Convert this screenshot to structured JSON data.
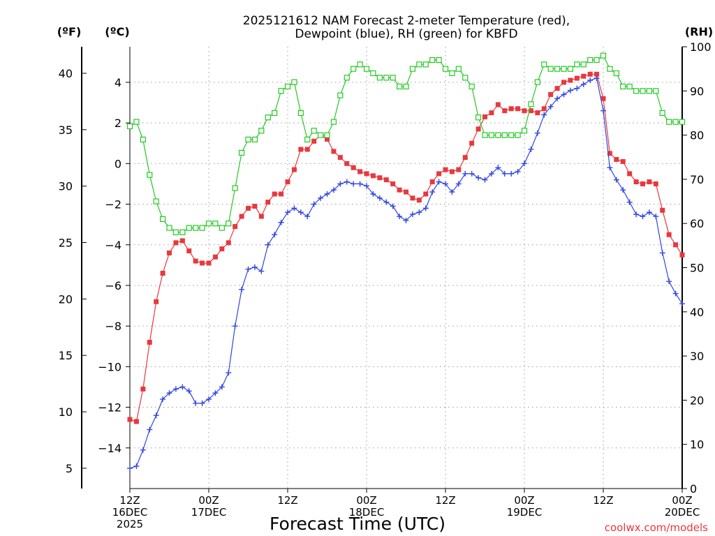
{
  "chart_data": {
    "type": "line",
    "title": [
      "2025121612 NAM Forecast 2-meter Temperature (red),",
      "Dewpoint (blue), RH (green) for KBFD"
    ],
    "xlabel": "Forecast Time (UTC)",
    "units": {
      "fahrenheit": "(ºF)",
      "celsius": "(ºC)",
      "rh": "(RH)"
    },
    "credit": "coolwx.com/models",
    "x_range_hours": [
      0,
      84
    ],
    "x_ticks": [
      {
        "hour": 0,
        "lines": [
          "12Z",
          "16DEC",
          "2025"
        ]
      },
      {
        "hour": 12,
        "lines": [
          "00Z",
          "17DEC"
        ]
      },
      {
        "hour": 24,
        "lines": [
          "12Z"
        ]
      },
      {
        "hour": 36,
        "lines": [
          "00Z",
          "18DEC"
        ]
      },
      {
        "hour": 48,
        "lines": [
          "12Z"
        ]
      },
      {
        "hour": 60,
        "lines": [
          "00Z",
          "19DEC"
        ]
      },
      {
        "hour": 72,
        "lines": [
          "12Z"
        ]
      },
      {
        "hour": 84,
        "lines": [
          "00Z",
          "20DEC"
        ]
      }
    ],
    "y_left_celsius": {
      "range": [
        -16,
        5.75
      ],
      "ticks": [
        4,
        2,
        0,
        -2,
        -4,
        -6,
        -8,
        -10,
        -12,
        -14
      ]
    },
    "y_left_fahrenheit": {
      "range": [
        3.2,
        42.35
      ],
      "ticks": [
        40,
        35,
        30,
        25,
        20,
        15,
        10,
        5
      ]
    },
    "y_right_rh": {
      "range": [
        0,
        100
      ],
      "ticks": [
        100,
        90,
        80,
        70,
        60,
        50,
        40,
        30,
        20,
        10,
        0
      ]
    },
    "hours": [
      0,
      1,
      2,
      3,
      4,
      5,
      6,
      7,
      8,
      9,
      10,
      11,
      12,
      13,
      14,
      15,
      16,
      17,
      18,
      19,
      20,
      21,
      22,
      23,
      24,
      25,
      26,
      27,
      28,
      29,
      30,
      31,
      32,
      33,
      34,
      35,
      36,
      37,
      38,
      39,
      40,
      41,
      42,
      43,
      44,
      45,
      46,
      47,
      48,
      49,
      50,
      51,
      52,
      53,
      54,
      55,
      56,
      57,
      58,
      59,
      60,
      61,
      62,
      63,
      64,
      65,
      66,
      67,
      68,
      69,
      70,
      71,
      72,
      73,
      74,
      75,
      76,
      77,
      78,
      79,
      80,
      81,
      82,
      83,
      84
    ],
    "series": [
      {
        "name": "Temperature",
        "units": "C",
        "color": "#e8383d",
        "marker": "filled-square",
        "values": [
          -12.6,
          -12.7,
          -11.1,
          -8.8,
          -6.8,
          -5.4,
          -4.4,
          -3.9,
          -3.8,
          -4.3,
          -4.8,
          -4.9,
          -4.9,
          -4.6,
          -4.2,
          -3.9,
          -3.1,
          -2.6,
          -2.2,
          -2.1,
          -2.6,
          -1.9,
          -1.5,
          -1.5,
          -0.9,
          -0.3,
          0.7,
          0.7,
          1.1,
          1.4,
          1.2,
          0.6,
          0.3,
          0.0,
          -0.2,
          -0.4,
          -0.5,
          -0.6,
          -0.7,
          -0.8,
          -1.0,
          -1.3,
          -1.4,
          -1.7,
          -1.8,
          -1.5,
          -0.9,
          -0.5,
          -0.3,
          -0.4,
          -0.3,
          0.3,
          1.0,
          1.7,
          2.3,
          2.5,
          2.9,
          2.6,
          2.7,
          2.7,
          2.6,
          2.6,
          2.5,
          2.7,
          3.4,
          3.7,
          4.0,
          4.1,
          4.2,
          4.3,
          4.4,
          4.4,
          3.2,
          0.5,
          0.2,
          0.1,
          -0.5,
          -0.9,
          -1.0,
          -0.9,
          -1.0,
          -2.3,
          -3.5,
          -4.0,
          -4.5
        ]
      },
      {
        "name": "Dewpoint",
        "units": "C",
        "color": "#2f45e0",
        "marker": "plus",
        "values": [
          -15.0,
          -14.9,
          -14.1,
          -13.1,
          -12.4,
          -11.6,
          -11.3,
          -11.1,
          -11.0,
          -11.2,
          -11.8,
          -11.8,
          -11.6,
          -11.3,
          -11.0,
          -10.3,
          -8.0,
          -6.2,
          -5.2,
          -5.1,
          -5.3,
          -4.0,
          -3.5,
          -2.9,
          -2.4,
          -2.2,
          -2.4,
          -2.6,
          -2.0,
          -1.7,
          -1.5,
          -1.3,
          -1.0,
          -0.9,
          -1.0,
          -1.0,
          -1.1,
          -1.5,
          -1.7,
          -1.9,
          -2.1,
          -2.6,
          -2.8,
          -2.5,
          -2.4,
          -2.2,
          -1.4,
          -0.9,
          -1.0,
          -1.4,
          -1.0,
          -0.5,
          -0.5,
          -0.7,
          -0.8,
          -0.5,
          -0.2,
          -0.5,
          -0.5,
          -0.4,
          0.0,
          0.7,
          1.5,
          2.4,
          2.8,
          3.2,
          3.4,
          3.6,
          3.7,
          3.9,
          4.1,
          4.2,
          2.6,
          -0.2,
          -0.8,
          -1.3,
          -1.9,
          -2.5,
          -2.6,
          -2.4,
          -2.6,
          -4.4,
          -5.8,
          -6.4,
          -6.9
        ]
      },
      {
        "name": "RH",
        "units": "%",
        "color": "#22c922",
        "marker": "open-square",
        "values": [
          82,
          83,
          79,
          71,
          65,
          61,
          59,
          58,
          58,
          59,
          59,
          59,
          60,
          60,
          59,
          60,
          68,
          76,
          79,
          79,
          81,
          84,
          85,
          90,
          91,
          92,
          85,
          79,
          81,
          80,
          80,
          83,
          89,
          93,
          95,
          96,
          95,
          94,
          93,
          93,
          93,
          91,
          91,
          95,
          96,
          96,
          97,
          97,
          95,
          94,
          95,
          93,
          91,
          84,
          80,
          80,
          80,
          80,
          80,
          80,
          81,
          87,
          92,
          96,
          95,
          95,
          95,
          95,
          96,
          96,
          97,
          97,
          98,
          95,
          94,
          91,
          91,
          90,
          90,
          90,
          90,
          85,
          83,
          83,
          83
        ]
      }
    ]
  }
}
